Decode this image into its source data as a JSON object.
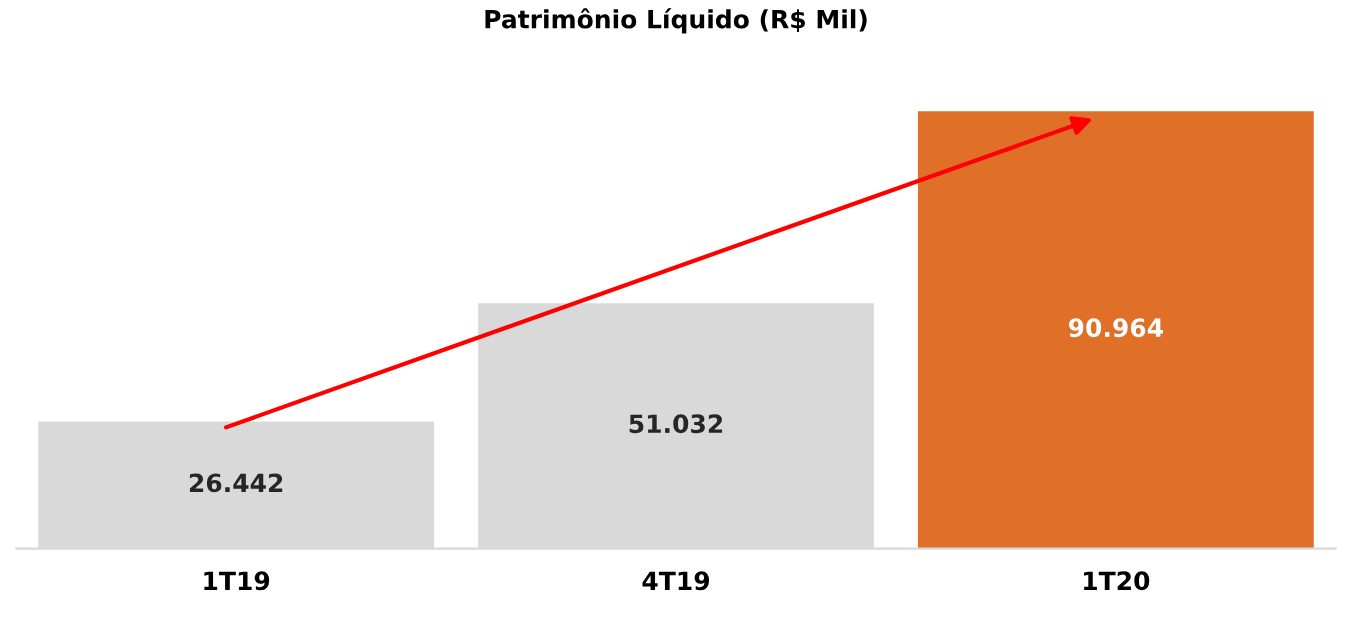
{
  "chart_data": {
    "type": "bar",
    "title": "Patrimônio Líquido (R$ Mil)",
    "categories": [
      "1T19",
      "4T19",
      "1T20"
    ],
    "values": [
      26442,
      51032,
      90964
    ],
    "value_labels": [
      "26.442",
      "51.032",
      "90.964"
    ],
    "colors": [
      "#d9d9d9",
      "#d9d9d9",
      "#e07028"
    ],
    "grid": false,
    "legend": false,
    "tick_labels": "x"
  }
}
